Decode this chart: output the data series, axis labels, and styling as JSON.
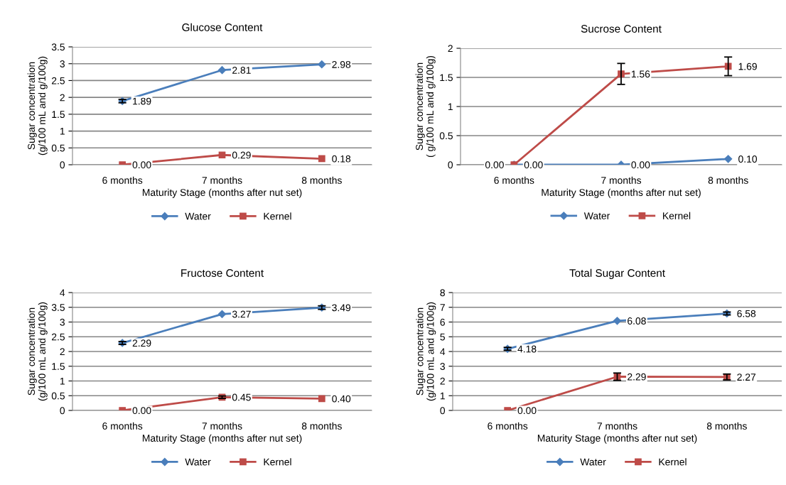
{
  "chart_data": [
    {
      "type": "line",
      "title": "Glucose Content",
      "xlabel": "Maturity Stage (months after nut set)",
      "ylabel": "Sugar concentration\n(g/100 mL and g/100g)",
      "categories": [
        "6 months",
        "7 months",
        "8 months"
      ],
      "ylim": [
        0,
        3.5
      ],
      "yticks": [
        0,
        0.5,
        1,
        1.5,
        2,
        2.5,
        3,
        3.5
      ],
      "grid": "y",
      "legend": "bottom",
      "series": [
        {
          "name": "Water",
          "color": "#4a7ebb",
          "marker": "diamond",
          "values": [
            1.89,
            2.81,
            2.98
          ],
          "errors": [
            0.05,
            null,
            null
          ],
          "value_labels": [
            "1.89",
            "2.81",
            "2.98"
          ]
        },
        {
          "name": "Kernel",
          "color": "#be4b48",
          "marker": "square",
          "values": [
            0.0,
            0.29,
            0.18
          ],
          "value_labels": [
            "0.00",
            "0.29",
            "0.18"
          ]
        }
      ]
    },
    {
      "type": "line",
      "title": "Sucrose Content",
      "xlabel": "Maturity Stage (months after nut set)",
      "ylabel": "Sugar concentration\n( g/100 mL and g/100g)",
      "categories": [
        "6 months",
        "7 months",
        "8 months"
      ],
      "ylim": [
        0,
        2
      ],
      "yticks": [
        0,
        0.5,
        1,
        1.5,
        2
      ],
      "grid": "y",
      "legend": "bottom",
      "series": [
        {
          "name": "Water",
          "color": "#4a7ebb",
          "marker": "diamond",
          "values": [
            0.0,
            0.0,
            0.1
          ],
          "value_labels": [
            "0.00",
            "0.00",
            "0.10"
          ]
        },
        {
          "name": "Kernel",
          "color": "#be4b48",
          "marker": "square",
          "values": [
            0.0,
            1.56,
            1.69
          ],
          "errors": [
            null,
            0.18,
            0.16
          ],
          "value_labels": [
            "0.00",
            "1.56",
            "1.69"
          ]
        }
      ]
    },
    {
      "type": "line",
      "title": "Fructose Content",
      "xlabel": "Maturity Stage (months after nut set)",
      "ylabel": "Sugar concentration\n(g/100 mL and g/100g)",
      "categories": [
        "6 months",
        "7 months",
        "8 months"
      ],
      "ylim": [
        0,
        4
      ],
      "yticks": [
        0,
        0.5,
        1,
        1.5,
        2,
        2.5,
        3,
        3.5,
        4
      ],
      "grid": "y",
      "legend": "bottom",
      "series": [
        {
          "name": "Water",
          "color": "#4a7ebb",
          "marker": "diamond",
          "values": [
            2.29,
            3.27,
            3.49
          ],
          "errors": [
            0.05,
            null,
            0.06
          ],
          "value_labels": [
            "2.29",
            "3.27",
            "3.49"
          ]
        },
        {
          "name": "Kernel",
          "color": "#be4b48",
          "marker": "square",
          "values": [
            0.0,
            0.45,
            0.4
          ],
          "errors": [
            null,
            0.04,
            null
          ],
          "value_labels": [
            "0.00",
            "0.45",
            "0.40"
          ]
        }
      ]
    },
    {
      "type": "line",
      "title": "Total Sugar Content",
      "xlabel": "Maturity Stage (months after nut set)",
      "ylabel": "Sugar concentration\n(g/100 mL and g/100g)",
      "categories": [
        "6 months",
        "7 months",
        "8 months"
      ],
      "ylim": [
        0,
        8
      ],
      "yticks": [
        0,
        1,
        2,
        3,
        4,
        5,
        6,
        7,
        8
      ],
      "grid": "y",
      "legend": "bottom",
      "series": [
        {
          "name": "Water",
          "color": "#4a7ebb",
          "marker": "diamond",
          "values": [
            4.18,
            6.08,
            6.58
          ],
          "errors": [
            0.1,
            null,
            0.1
          ],
          "value_labels": [
            "4.18",
            "6.08",
            "6.58"
          ]
        },
        {
          "name": "Kernel",
          "color": "#be4b48",
          "marker": "square",
          "values": [
            0.0,
            2.29,
            2.27
          ],
          "errors": [
            null,
            0.25,
            0.2
          ],
          "value_labels": [
            "0.00",
            "2.29",
            "2.27"
          ]
        }
      ]
    }
  ]
}
